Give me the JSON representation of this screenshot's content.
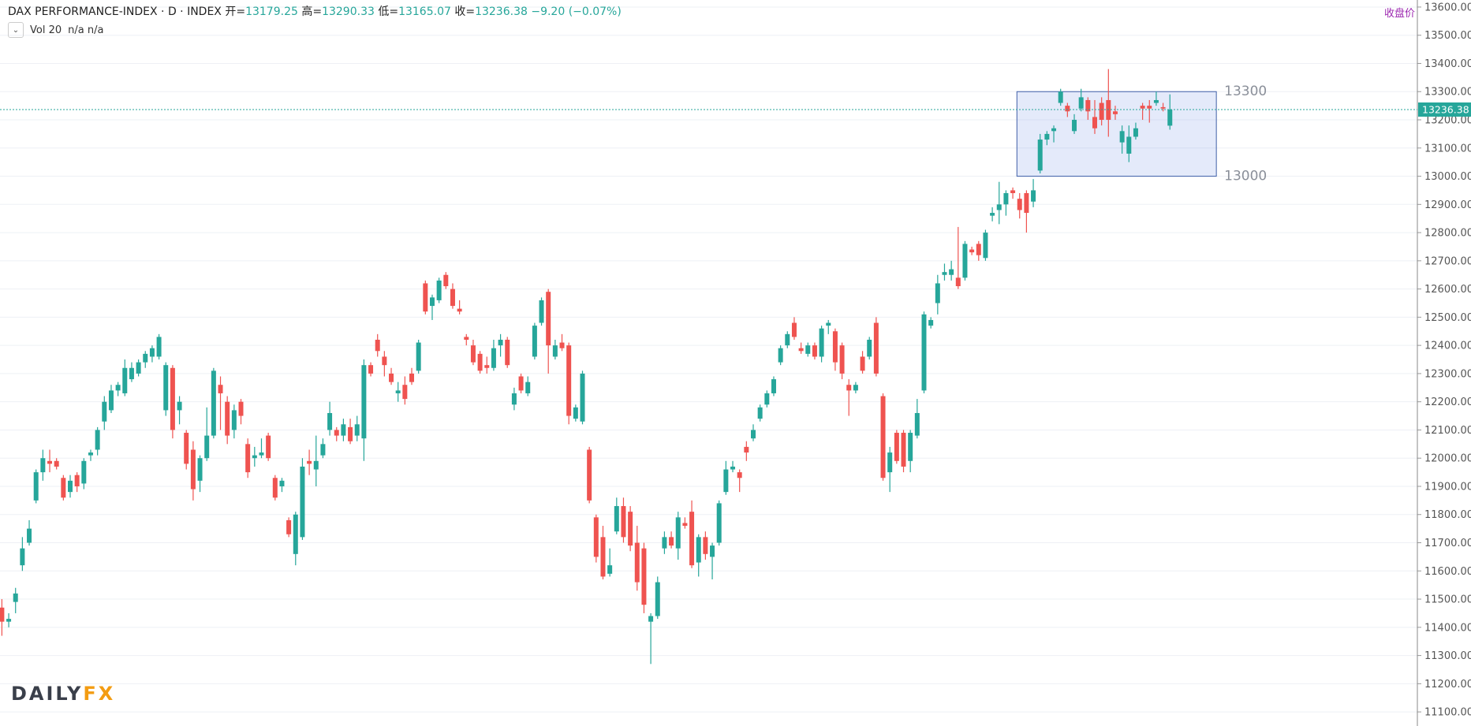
{
  "header": {
    "title": "DAX PERFORMANCE-INDEX · D · INDEX",
    "ohlc_labels": [
      "开=",
      "高=",
      "低=",
      "收="
    ],
    "change": "−9.20 (−0.07%)",
    "indicator": "Vol 20",
    "indicator_values": "n/a n/a",
    "price_type": "收盘价"
  },
  "logo": {
    "left": "DAILY",
    "right": "FX"
  },
  "chart_data": {
    "type": "candlestick",
    "up_color": "#26a69a",
    "down_color": "#ef5350",
    "grid": true,
    "ylim": [
      11050,
      13625
    ],
    "yticks": [
      {
        "value": 11100,
        "label": "11100.00"
      },
      {
        "value": 11200,
        "label": "11200.00"
      },
      {
        "value": 11300,
        "label": "11300.00"
      },
      {
        "value": 11400,
        "label": "11400.00"
      },
      {
        "value": 11500,
        "label": "11500.00"
      },
      {
        "value": 11600,
        "label": "11600.00"
      },
      {
        "value": 11700,
        "label": "11700.00"
      },
      {
        "value": 11800,
        "label": "11800.00"
      },
      {
        "value": 11900,
        "label": "11900.00"
      },
      {
        "value": 12000,
        "label": "12000.00"
      },
      {
        "value": 12100,
        "label": "12100.00"
      },
      {
        "value": 12200,
        "label": "12200.00"
      },
      {
        "value": 12300,
        "label": "12300.00"
      },
      {
        "value": 12400,
        "label": "12400.00"
      },
      {
        "value": 12500,
        "label": "12500.00"
      },
      {
        "value": 12600,
        "label": "12600.00"
      },
      {
        "value": 12700,
        "label": "12700.00"
      },
      {
        "value": 12800,
        "label": "12800.00"
      },
      {
        "value": 12900,
        "label": "12900.00"
      },
      {
        "value": 13000,
        "label": "13000.00"
      },
      {
        "value": 13100,
        "label": "13100.00"
      },
      {
        "value": 13200,
        "label": "13200.00"
      },
      {
        "value": 13300,
        "label": "13300.00"
      },
      {
        "value": 13400,
        "label": "13400.00"
      },
      {
        "value": 13500,
        "label": "13500.00"
      },
      {
        "value": 13600,
        "label": "13600.00"
      }
    ],
    "levels": [
      13300,
      13000
    ],
    "ohlc": [
      [
        11470,
        11500,
        11370,
        11420
      ],
      [
        11420,
        11450,
        11400,
        11430
      ],
      [
        11490,
        11540,
        11450,
        11520
      ],
      [
        11620,
        11720,
        11600,
        11680
      ],
      [
        11700,
        11780,
        11690,
        11750
      ],
      [
        11850,
        11960,
        11840,
        11950
      ],
      [
        11950,
        12030,
        11920,
        12000
      ],
      [
        11990,
        12030,
        11950,
        11980
      ],
      [
        11990,
        12000,
        11960,
        11970
      ],
      [
        11930,
        11940,
        11850,
        11860
      ],
      [
        11880,
        11940,
        11860,
        11920
      ],
      [
        11940,
        11950,
        11880,
        11900
      ],
      [
        11910,
        12000,
        11890,
        11990
      ],
      [
        12010,
        12030,
        11990,
        12020
      ],
      [
        12030,
        12110,
        12010,
        12100
      ],
      [
        12130,
        12220,
        12100,
        12200
      ],
      [
        12170,
        12260,
        12160,
        12240
      ],
      [
        12240,
        12270,
        12220,
        12260
      ],
      [
        12230,
        12350,
        12220,
        12320
      ],
      [
        12280,
        12340,
        12270,
        12320
      ],
      [
        12300,
        12350,
        12290,
        12340
      ],
      [
        12340,
        12380,
        12320,
        12370
      ],
      [
        12360,
        12400,
        12340,
        12390
      ],
      [
        12360,
        12440,
        12350,
        12430
      ],
      [
        12170,
        12340,
        12150,
        12330
      ],
      [
        12320,
        12330,
        12070,
        12100
      ],
      [
        12170,
        12220,
        12120,
        12200
      ],
      [
        12090,
        12100,
        11960,
        11980
      ],
      [
        12030,
        12060,
        11850,
        11890
      ],
      [
        11920,
        12010,
        11880,
        12000
      ],
      [
        12000,
        12180,
        11990,
        12080
      ],
      [
        12080,
        12320,
        12070,
        12310
      ],
      [
        12260,
        12290,
        12100,
        12230
      ],
      [
        12200,
        12220,
        12050,
        12080
      ],
      [
        12100,
        12190,
        12070,
        12170
      ],
      [
        12200,
        12210,
        12120,
        12150
      ],
      [
        12050,
        12070,
        11930,
        11950
      ],
      [
        12000,
        12040,
        11970,
        12010
      ],
      [
        12010,
        12070,
        12000,
        12020
      ],
      [
        12080,
        12090,
        11990,
        12000
      ],
      [
        11930,
        11940,
        11850,
        11860
      ],
      [
        11900,
        11930,
        11880,
        11920
      ],
      [
        11780,
        11790,
        11720,
        11730
      ],
      [
        11660,
        11810,
        11620,
        11800
      ],
      [
        11720,
        12000,
        11710,
        11970
      ],
      [
        11990,
        12030,
        11940,
        11980
      ],
      [
        11960,
        12080,
        11900,
        11990
      ],
      [
        12010,
        12070,
        12000,
        12050
      ],
      [
        12100,
        12200,
        12080,
        12160
      ],
      [
        12100,
        12110,
        12060,
        12080
      ],
      [
        12080,
        12140,
        12060,
        12120
      ],
      [
        12110,
        12140,
        12050,
        12060
      ],
      [
        12080,
        12150,
        12060,
        12120
      ],
      [
        12070,
        12350,
        11990,
        12330
      ],
      [
        12330,
        12340,
        12290,
        12300
      ],
      [
        12420,
        12440,
        12360,
        12380
      ],
      [
        12360,
        12380,
        12290,
        12330
      ],
      [
        12300,
        12320,
        12260,
        12270
      ],
      [
        12230,
        12270,
        12200,
        12240
      ],
      [
        12260,
        12290,
        12190,
        12210
      ],
      [
        12300,
        12320,
        12260,
        12270
      ],
      [
        12310,
        12420,
        12300,
        12410
      ],
      [
        12620,
        12630,
        12510,
        12520
      ],
      [
        12540,
        12580,
        12490,
        12570
      ],
      [
        12560,
        12640,
        12550,
        12630
      ],
      [
        12650,
        12660,
        12600,
        12610
      ],
      [
        12600,
        12620,
        12530,
        12540
      ],
      [
        12530,
        12560,
        12510,
        12520
      ],
      [
        12430,
        12440,
        12400,
        12420
      ],
      [
        12400,
        12420,
        12330,
        12340
      ],
      [
        12370,
        12380,
        12300,
        12310
      ],
      [
        12330,
        12360,
        12300,
        12320
      ],
      [
        12320,
        12420,
        12310,
        12390
      ],
      [
        12400,
        12440,
        12360,
        12420
      ],
      [
        12420,
        12430,
        12320,
        12330
      ],
      [
        12190,
        12250,
        12170,
        12230
      ],
      [
        12290,
        12300,
        12230,
        12240
      ],
      [
        12230,
        12290,
        12220,
        12270
      ],
      [
        12360,
        12480,
        12350,
        12470
      ],
      [
        12480,
        12570,
        12470,
        12560
      ],
      [
        12590,
        12600,
        12300,
        12400
      ],
      [
        12360,
        12420,
        12350,
        12400
      ],
      [
        12410,
        12440,
        12380,
        12390
      ],
      [
        12400,
        12410,
        12120,
        12150
      ],
      [
        12140,
        12190,
        12130,
        12180
      ],
      [
        12130,
        12310,
        12120,
        12300
      ],
      [
        12030,
        12040,
        11840,
        11850
      ],
      [
        11790,
        11800,
        11630,
        11650
      ],
      [
        11720,
        11760,
        11570,
        11580
      ],
      [
        11590,
        11680,
        11580,
        11620
      ],
      [
        11740,
        11860,
        11730,
        11830
      ],
      [
        11830,
        11860,
        11700,
        11720
      ],
      [
        11810,
        11830,
        11670,
        11690
      ],
      [
        11700,
        11760,
        11530,
        11560
      ],
      [
        11680,
        11700,
        11450,
        11480
      ],
      [
        11420,
        11450,
        11270,
        11440
      ],
      [
        11440,
        11580,
        11430,
        11560
      ],
      [
        11680,
        11740,
        11660,
        11720
      ],
      [
        11720,
        11740,
        11680,
        11690
      ],
      [
        11680,
        11810,
        11640,
        11790
      ],
      [
        11770,
        11790,
        11750,
        11760
      ],
      [
        11810,
        11850,
        11610,
        11620
      ],
      [
        11630,
        11730,
        11580,
        11720
      ],
      [
        11720,
        11740,
        11640,
        11660
      ],
      [
        11650,
        11700,
        11570,
        11690
      ],
      [
        11700,
        11850,
        11690,
        11840
      ],
      [
        11880,
        11990,
        11870,
        11960
      ],
      [
        11960,
        11990,
        11950,
        11970
      ],
      [
        11950,
        11960,
        11880,
        11930
      ],
      [
        12040,
        12060,
        11990,
        12020
      ],
      [
        12070,
        12120,
        12060,
        12100
      ],
      [
        12140,
        12190,
        12130,
        12180
      ],
      [
        12190,
        12240,
        12180,
        12230
      ],
      [
        12230,
        12290,
        12220,
        12280
      ],
      [
        12340,
        12400,
        12330,
        12390
      ],
      [
        12400,
        12450,
        12390,
        12440
      ],
      [
        12480,
        12500,
        12420,
        12430
      ],
      [
        12390,
        12410,
        12370,
        12380
      ],
      [
        12370,
        12410,
        12360,
        12400
      ],
      [
        12400,
        12410,
        12350,
        12360
      ],
      [
        12360,
        12470,
        12340,
        12460
      ],
      [
        12470,
        12490,
        12440,
        12480
      ],
      [
        12450,
        12460,
        12310,
        12340
      ],
      [
        12400,
        12410,
        12280,
        12300
      ],
      [
        12260,
        12280,
        12150,
        12240
      ],
      [
        12240,
        12270,
        12230,
        12260
      ],
      [
        12360,
        12380,
        12300,
        12310
      ],
      [
        12360,
        12430,
        12350,
        12420
      ],
      [
        12480,
        12500,
        12290,
        12300
      ],
      [
        12220,
        12230,
        11920,
        11930
      ],
      [
        11950,
        12040,
        11880,
        12020
      ],
      [
        12090,
        12100,
        11980,
        11990
      ],
      [
        12090,
        12100,
        11950,
        11970
      ],
      [
        11990,
        12100,
        11950,
        12090
      ],
      [
        12080,
        12210,
        12070,
        12160
      ],
      [
        12240,
        12520,
        12230,
        12510
      ],
      [
        12470,
        12500,
        12460,
        12490
      ],
      [
        12550,
        12650,
        12510,
        12620
      ],
      [
        12650,
        12690,
        12630,
        12660
      ],
      [
        12650,
        12700,
        12630,
        12670
      ],
      [
        12640,
        12820,
        12600,
        12610
      ],
      [
        12640,
        12770,
        12630,
        12760
      ],
      [
        12740,
        12750,
        12720,
        12730
      ],
      [
        12760,
        12770,
        12700,
        12720
      ],
      [
        12710,
        12810,
        12700,
        12800
      ],
      [
        12860,
        12890,
        12840,
        12870
      ],
      [
        12880,
        12980,
        12830,
        12900
      ],
      [
        12900,
        12950,
        12860,
        12940
      ],
      [
        12950,
        12960,
        12920,
        12940
      ],
      [
        12920,
        12940,
        12850,
        12880
      ],
      [
        12940,
        12950,
        12800,
        12870
      ],
      [
        12910,
        12990,
        12890,
        12950
      ],
      [
        13020,
        13150,
        13010,
        13130
      ],
      [
        13130,
        13160,
        13110,
        13150
      ],
      [
        13160,
        13180,
        13120,
        13170
      ],
      [
        13260,
        13310,
        13250,
        13300
      ],
      [
        13250,
        13260,
        13210,
        13230
      ],
      [
        13160,
        13220,
        13150,
        13200
      ],
      [
        13240,
        13310,
        13230,
        13280
      ],
      [
        13270,
        13280,
        13200,
        13230
      ],
      [
        13210,
        13270,
        13150,
        13170
      ],
      [
        13260,
        13280,
        13180,
        13200
      ],
      [
        13270,
        13380,
        13140,
        13200
      ],
      [
        13230,
        13250,
        13200,
        13220
      ],
      [
        13120,
        13180,
        13080,
        13160
      ],
      [
        13080,
        13180,
        13050,
        13140
      ],
      [
        13140,
        13190,
        13130,
        13170
      ],
      [
        13250,
        13260,
        13200,
        13240
      ],
      [
        13250,
        13270,
        13190,
        13240
      ],
      [
        13260,
        13300,
        13250,
        13270
      ],
      [
        13245,
        13260,
        13230,
        13240
      ],
      [
        13179.25,
        13290.33,
        13165.07,
        13236.38
      ]
    ]
  }
}
